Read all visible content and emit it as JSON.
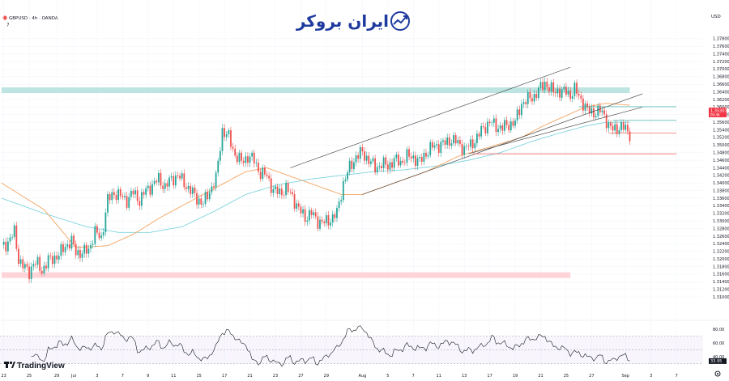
{
  "header": {
    "symbol_line": "GBPUSD · 4h · OANDA",
    "indicator_count": "7",
    "currency_label": "USD"
  },
  "logo": {
    "text": "ایران بروکر"
  },
  "footer": {
    "brand": "TradingView"
  },
  "colors": {
    "up": "#26a69a",
    "down": "#ef5350",
    "ma_fast": "#f4a460",
    "ma_slow": "#7fd4dd",
    "supply_zone": "#b2dfdb",
    "demand_zone": "#ffcdd2",
    "channel": "#333333",
    "price_tag": "#f23645",
    "brand": "#1f3a9e"
  },
  "chart_data": {
    "type": "candlestick",
    "symbol": "GBPUSD",
    "timeframe": "4h",
    "source": "OANDA",
    "ylim": [
      1.308,
      1.38
    ],
    "yticks": [
      "1.37800",
      "1.37600",
      "1.37400",
      "1.37200",
      "1.37000",
      "1.36800",
      "1.36600",
      "1.36400",
      "1.36200",
      "1.36000",
      "1.35800",
      "1.35600",
      "1.35400",
      "1.35200",
      "1.35000",
      "1.34800",
      "1.34600",
      "1.34400",
      "1.34200",
      "1.34000",
      "1.33800",
      "1.33600",
      "1.33400",
      "1.33200",
      "1.33000",
      "1.32800",
      "1.32600",
      "1.32400",
      "1.32200",
      "1.32000",
      "1.31800",
      "1.31600",
      "1.31400",
      "1.31200",
      "1.31000"
    ],
    "xticks": [
      {
        "label": "23",
        "i": 1
      },
      {
        "label": "25",
        "i": 13
      },
      {
        "label": "29",
        "i": 26
      },
      {
        "label": "Jul",
        "i": 34
      },
      {
        "label": "3",
        "i": 45
      },
      {
        "label": "7",
        "i": 57
      },
      {
        "label": "9",
        "i": 69
      },
      {
        "label": "11",
        "i": 81
      },
      {
        "label": "15",
        "i": 93
      },
      {
        "label": "17",
        "i": 105
      },
      {
        "label": "21",
        "i": 117
      },
      {
        "label": "23",
        "i": 129
      },
      {
        "label": "27",
        "i": 141
      },
      {
        "label": "29",
        "i": 153
      },
      {
        "label": "Aug",
        "i": 170
      },
      {
        "label": "5",
        "i": 182
      },
      {
        "label": "7",
        "i": 194
      },
      {
        "label": "11",
        "i": 206
      },
      {
        "label": "13",
        "i": 218
      },
      {
        "label": "17",
        "i": 230
      },
      {
        "label": "19",
        "i": 242
      },
      {
        "label": "21",
        "i": 254
      },
      {
        "label": "25",
        "i": 266
      },
      {
        "label": "27",
        "i": 278
      },
      {
        "label": "Sep",
        "i": 294
      },
      {
        "label": "3",
        "i": 306
      },
      {
        "label": "7",
        "i": 318
      }
    ],
    "current_price": "1.35307",
    "current_countdown": "00:46",
    "rsi": {
      "ylim": [
        25,
        85
      ],
      "levels": [
        70,
        50,
        30
      ],
      "ticks": [
        "80.00",
        "60.00",
        "40.00"
      ],
      "current": "33.95"
    },
    "anchors": [
      [
        0,
        1.323
      ],
      [
        3,
        1.3245
      ],
      [
        6,
        1.327
      ],
      [
        8,
        1.32
      ],
      [
        11,
        1.3175
      ],
      [
        13,
        1.3165
      ],
      [
        15,
        1.319
      ],
      [
        17,
        1.3185
      ],
      [
        19,
        1.317
      ],
      [
        22,
        1.3195
      ],
      [
        25,
        1.3205
      ],
      [
        27,
        1.321
      ],
      [
        30,
        1.3235
      ],
      [
        33,
        1.3245
      ],
      [
        35,
        1.322
      ],
      [
        38,
        1.3215
      ],
      [
        41,
        1.3225
      ],
      [
        44,
        1.327
      ],
      [
        47,
        1.3255
      ],
      [
        50,
        1.3355
      ],
      [
        53,
        1.3375
      ],
      [
        56,
        1.3365
      ],
      [
        59,
        1.3355
      ],
      [
        62,
        1.3375
      ],
      [
        65,
        1.3355
      ],
      [
        68,
        1.338
      ],
      [
        71,
        1.3395
      ],
      [
        74,
        1.341
      ],
      [
        77,
        1.339
      ],
      [
        80,
        1.341
      ],
      [
        83,
        1.342
      ],
      [
        86,
        1.34
      ],
      [
        89,
        1.338
      ],
      [
        92,
        1.336
      ],
      [
        95,
        1.3345
      ],
      [
        98,
        1.338
      ],
      [
        101,
        1.341
      ],
      [
        104,
        1.354
      ],
      [
        107,
        1.352
      ],
      [
        110,
        1.3475
      ],
      [
        113,
        1.3455
      ],
      [
        116,
        1.347
      ],
      [
        119,
        1.346
      ],
      [
        122,
        1.3425
      ],
      [
        125,
        1.342
      ],
      [
        128,
        1.338
      ],
      [
        131,
        1.3375
      ],
      [
        134,
        1.3385
      ],
      [
        137,
        1.3365
      ],
      [
        140,
        1.333
      ],
      [
        143,
        1.331
      ],
      [
        146,
        1.332
      ],
      [
        149,
        1.33
      ],
      [
        152,
        1.3295
      ],
      [
        155,
        1.3305
      ],
      [
        158,
        1.332
      ],
      [
        161,
        1.34
      ],
      [
        164,
        1.344
      ],
      [
        167,
        1.347
      ],
      [
        170,
        1.348
      ],
      [
        173,
        1.346
      ],
      [
        176,
        1.344
      ],
      [
        179,
        1.345
      ],
      [
        182,
        1.3445
      ],
      [
        185,
        1.346
      ],
      [
        188,
        1.3455
      ],
      [
        191,
        1.347
      ],
      [
        194,
        1.3468
      ],
      [
        197,
        1.3455
      ],
      [
        200,
        1.348
      ],
      [
        203,
        1.3495
      ],
      [
        206,
        1.35
      ],
      [
        209,
        1.3505
      ],
      [
        212,
        1.3515
      ],
      [
        215,
        1.3505
      ],
      [
        218,
        1.349
      ],
      [
        221,
        1.35
      ],
      [
        224,
        1.352
      ],
      [
        227,
        1.3545
      ],
      [
        230,
        1.356
      ],
      [
        233,
        1.355
      ],
      [
        236,
        1.3545
      ],
      [
        239,
        1.3555
      ],
      [
        242,
        1.356
      ],
      [
        245,
        1.361
      ],
      [
        248,
        1.362
      ],
      [
        251,
        1.363
      ],
      [
        254,
        1.365
      ],
      [
        256,
        1.3665
      ],
      [
        258,
        1.365
      ],
      [
        260,
        1.364
      ],
      [
        262,
        1.3645
      ],
      [
        264,
        1.3638
      ],
      [
        266,
        1.3642
      ],
      [
        268,
        1.3632
      ],
      [
        270,
        1.3645
      ],
      [
        272,
        1.363
      ],
      [
        274,
        1.361
      ],
      [
        276,
        1.359
      ],
      [
        278,
        1.3588
      ],
      [
        280,
        1.3585
      ],
      [
        282,
        1.359
      ],
      [
        284,
        1.358
      ],
      [
        286,
        1.355
      ],
      [
        288,
        1.354
      ],
      [
        290,
        1.3545
      ],
      [
        292,
        1.3548
      ],
      [
        294,
        1.3542
      ],
      [
        296,
        1.353
      ]
    ],
    "ma_fast_anchors": [
      [
        0,
        1.34
      ],
      [
        20,
        1.333
      ],
      [
        35,
        1.323
      ],
      [
        50,
        1.3235
      ],
      [
        62,
        1.3265
      ],
      [
        75,
        1.331
      ],
      [
        90,
        1.3355
      ],
      [
        105,
        1.34
      ],
      [
        115,
        1.343
      ],
      [
        125,
        1.344
      ],
      [
        140,
        1.341
      ],
      [
        150,
        1.339
      ],
      [
        160,
        1.337
      ],
      [
        170,
        1.337
      ],
      [
        185,
        1.34
      ],
      [
        200,
        1.343
      ],
      [
        215,
        1.347
      ],
      [
        230,
        1.3495
      ],
      [
        245,
        1.352
      ],
      [
        255,
        1.355
      ],
      [
        265,
        1.3575
      ],
      [
        275,
        1.36
      ],
      [
        285,
        1.361
      ],
      [
        296,
        1.3605
      ]
    ],
    "ma_slow_anchors": [
      [
        0,
        1.336
      ],
      [
        20,
        1.332
      ],
      [
        40,
        1.3285
      ],
      [
        55,
        1.327
      ],
      [
        70,
        1.327
      ],
      [
        85,
        1.3285
      ],
      [
        100,
        1.3325
      ],
      [
        115,
        1.337
      ],
      [
        130,
        1.3395
      ],
      [
        145,
        1.341
      ],
      [
        160,
        1.342
      ],
      [
        175,
        1.343
      ],
      [
        190,
        1.3435
      ],
      [
        205,
        1.3445
      ],
      [
        220,
        1.346
      ],
      [
        235,
        1.348
      ],
      [
        250,
        1.351
      ],
      [
        262,
        1.353
      ],
      [
        275,
        1.355
      ],
      [
        285,
        1.356
      ],
      [
        296,
        1.356
      ]
    ],
    "zones": [
      {
        "kind": "supply",
        "from_i": 0,
        "to_i": 296,
        "ytop": 1.3652,
        "ybot": 1.3637
      },
      {
        "kind": "demand",
        "from_i": 0,
        "to_i": 268,
        "ytop": 1.3165,
        "ybot": 1.315
      }
    ],
    "channel_lines": [
      {
        "i1": 136,
        "p1": 1.344,
        "i2": 268,
        "p2": 1.3705
      },
      {
        "i1": 170,
        "p1": 1.337,
        "i2": 302,
        "p2": 1.3635
      },
      {
        "i1": 220,
        "p1": 1.3477,
        "i2": 302,
        "p2": 1.36
      }
    ],
    "level_lines": [
      {
        "i1": 222,
        "i2": 318,
        "p": 1.3477,
        "color": "#ef5350"
      },
      {
        "i1": 272,
        "i2": 318,
        "p": 1.3601,
        "color": "#26a69a"
      },
      {
        "i1": 288,
        "i2": 318,
        "p": 1.3565,
        "color": "#26a69a"
      },
      {
        "i1": 286,
        "i2": 318,
        "p": 1.3532,
        "color": "#ef5350"
      }
    ]
  }
}
